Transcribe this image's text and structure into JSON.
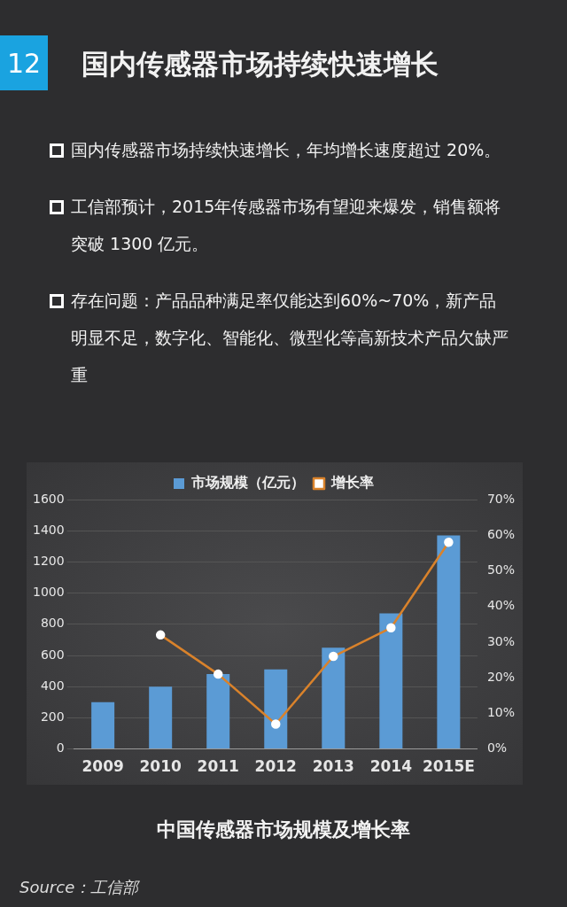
{
  "chart_data": {
    "type": "bar",
    "title": "国内传感器市场持续快速增长",
    "subtitle": "中国传感器市场规模及增长率",
    "annotations": [
      "12",
      "国内传感器市场持续快速增长，年均增长速度超过 20%。",
      "工信部预计，2015年传感器市场有望迎来爆发，销售额将突破 1300 亿元。",
      "存在问题：产品品种满足率仅能达到60%~70%，新产品明显不足，数字化、智能化、微型化等高新技术产品欠缺严重",
      "Source：工信部"
    ],
    "categories": [
      "2009",
      "2010",
      "2011",
      "2012",
      "2013",
      "2014",
      "2015E"
    ],
    "series": [
      {
        "name": "市场规模（亿元）",
        "color": "#5b9bd5",
        "values": [
          300,
          400,
          480,
          510,
          650,
          870,
          1370
        ]
      },
      {
        "name": "增长率",
        "type": "line",
        "axis": "y2",
        "color": "#d9822b",
        "values": [
          null,
          32,
          21,
          7,
          26,
          34,
          58
        ]
      }
    ],
    "ylim": [
      0,
      1600
    ],
    "yticks": [
      0,
      200,
      400,
      600,
      800,
      1000,
      1200,
      1400,
      1600
    ],
    "y2lim": [
      0,
      70
    ],
    "y2ticks": [
      {
        "value": 0,
        "label": "0%"
      },
      {
        "value": 10,
        "label": "10%"
      },
      {
        "value": 20,
        "label": "20%"
      },
      {
        "value": 30,
        "label": "30%"
      },
      {
        "value": 40,
        "label": "40%"
      },
      {
        "value": 50,
        "label": "50%"
      },
      {
        "value": 60,
        "label": "60%"
      },
      {
        "value": 70,
        "label": "70%"
      }
    ],
    "grid": "y",
    "legend": "top",
    "marker": "circle",
    "line_style": "solid"
  }
}
